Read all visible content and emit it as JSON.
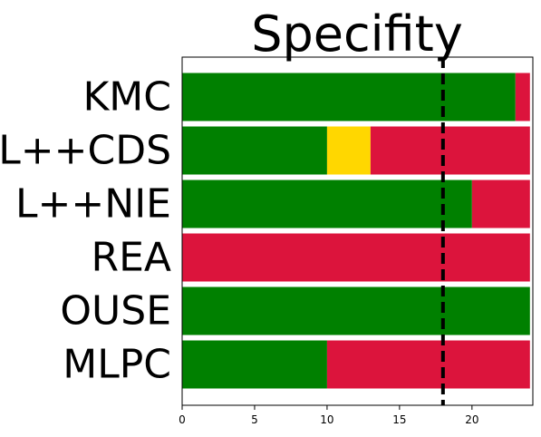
{
  "chart_data": {
    "type": "bar",
    "orientation": "horizontal",
    "stacked": true,
    "title": "Specifity",
    "categories": [
      "KMC",
      "L++CDS",
      "L++NIE",
      "REA",
      "OUSE",
      "MLPC"
    ],
    "series": [
      {
        "color": "#008000",
        "values": [
          23,
          10,
          20,
          0,
          24,
          10
        ]
      },
      {
        "color": "#FFD700",
        "values": [
          0,
          3,
          0,
          0,
          0,
          0
        ]
      },
      {
        "color": "#DC143C",
        "values": [
          1,
          11,
          4,
          24,
          0,
          14
        ]
      }
    ],
    "xlim": [
      0,
      24.2
    ],
    "xticks": [
      0,
      5,
      10,
      15,
      20
    ],
    "threshold": {
      "x": 18,
      "style": "dashed",
      "color": "#000000"
    },
    "grid": false,
    "legend": "none"
  }
}
